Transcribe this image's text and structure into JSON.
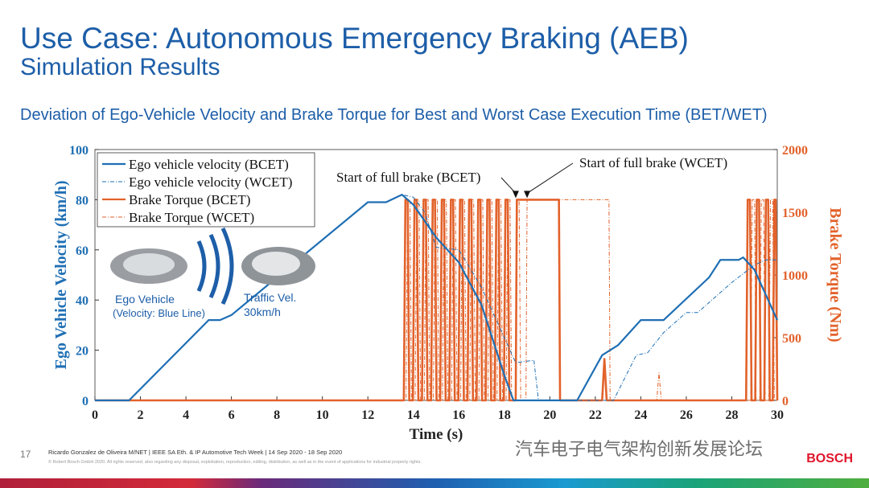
{
  "header": {
    "title": "Use Case: Autonomous Emergency Braking (AEB)",
    "subtitle": "Simulation Results",
    "heading": "Deviation of Ego-Vehicle Velocity and Brake Torque for Best and Worst Case Execution Time (BET/WET)"
  },
  "illustration": {
    "ego_label": "Ego Vehicle",
    "ego_note": "(Velocity: Blue Line)",
    "traffic_label": "Traffic Vel.",
    "traffic_speed": "30km/h"
  },
  "chart_data": {
    "type": "line",
    "xlabel": "Time (s)",
    "ylabel": "Ego Vehicle Velocity (km/h)",
    "y2label": "Brake Torque (Nm)",
    "xlim": [
      0,
      30
    ],
    "xticks": [
      0,
      2,
      4,
      6,
      8,
      10,
      12,
      14,
      16,
      18,
      20,
      22,
      24,
      26,
      28,
      30
    ],
    "ylim": [
      0,
      100
    ],
    "yticks": [
      0,
      20,
      40,
      60,
      80,
      100
    ],
    "y2lim": [
      0,
      2000
    ],
    "y2ticks": [
      0,
      500,
      1000,
      1500,
      2000
    ],
    "legend": "upper left",
    "annotations": [
      {
        "text": "Start of full brake (BCET)",
        "x": 18.5,
        "y": 1600
      },
      {
        "text": "Start of full brake (WCET)",
        "x": 19.0,
        "y": 1600
      }
    ],
    "series": [
      {
        "name": "Ego vehicle velocity (BCET)",
        "color": "#1f6fb4",
        "style": "solid",
        "axis": "y",
        "x": [
          0,
          1.5,
          5,
          5.5,
          6,
          12,
          12.8,
          13.5,
          14,
          15,
          16,
          17,
          18,
          18.4,
          21.2,
          22.3,
          23,
          24,
          25,
          27,
          27.5,
          28.3,
          28.5,
          29,
          29.5,
          30
        ],
        "values": [
          0,
          0,
          32,
          32,
          34,
          79,
          79,
          82,
          78,
          65,
          55,
          38,
          10,
          0,
          0,
          18,
          22,
          32,
          32,
          49,
          56,
          56,
          57,
          52,
          42,
          32
        ]
      },
      {
        "name": "Ego vehicle velocity (WCET)",
        "color": "#1f6fb4",
        "style": "dashed",
        "axis": "y",
        "x": [
          0,
          1.5,
          5,
          5.5,
          6,
          12,
          12.8,
          13.5,
          14,
          14.5,
          15,
          16,
          17,
          18,
          18.5,
          19.3,
          19.5,
          22.8,
          23.8,
          24.3,
          25,
          26,
          26.5,
          28,
          29,
          29.5,
          30
        ],
        "values": [
          0,
          0,
          32,
          32,
          34,
          79,
          79,
          82,
          81,
          75,
          61,
          60,
          45,
          25,
          15,
          16,
          0,
          0,
          18,
          19,
          27,
          35,
          35,
          47,
          54,
          56,
          56
        ]
      },
      {
        "name": "Brake Torque (BCET)",
        "color": "#e2622b",
        "style": "solid",
        "axis": "y2",
        "x": [
          0,
          13.58,
          13.65,
          13.75,
          13.82,
          13.98,
          14.05,
          14.15,
          14.22,
          14.38,
          14.45,
          14.55,
          14.62,
          14.78,
          14.85,
          14.95,
          15.02,
          15.18,
          15.25,
          15.35,
          15.42,
          15.58,
          15.65,
          15.75,
          15.82,
          15.98,
          16.05,
          16.15,
          16.22,
          16.38,
          16.45,
          16.55,
          16.62,
          16.78,
          16.85,
          16.95,
          17.02,
          17.18,
          17.25,
          17.35,
          17.42,
          17.58,
          17.65,
          17.75,
          17.82,
          17.98,
          18.05,
          18.15,
          18.22,
          18.5,
          18.55,
          20.4,
          20.45,
          22.3,
          22.4,
          22.5,
          28.63,
          28.7,
          28.8,
          28.87,
          29.03,
          29.1,
          29.2,
          29.27,
          29.43,
          29.5,
          29.6,
          29.67,
          29.8,
          29.87,
          29.93,
          30
        ],
        "values": [
          0,
          0,
          1600,
          1600,
          0,
          0,
          1600,
          1600,
          0,
          0,
          1600,
          1600,
          0,
          0,
          1600,
          1600,
          0,
          0,
          1600,
          1600,
          0,
          0,
          1600,
          1600,
          0,
          0,
          1600,
          1600,
          0,
          0,
          1600,
          1600,
          0,
          0,
          1600,
          1600,
          0,
          0,
          1600,
          1600,
          0,
          0,
          1600,
          1600,
          0,
          0,
          1600,
          1600,
          0,
          0,
          1600,
          1600,
          0,
          0,
          330,
          0,
          0,
          1600,
          1600,
          0,
          0,
          1600,
          1600,
          0,
          0,
          1600,
          1600,
          0,
          0,
          1600,
          1600,
          0
        ]
      },
      {
        "name": "Brake Torque (WCET)",
        "color": "#e2622b",
        "style": "dashed",
        "axis": "y2",
        "x": [
          0,
          13.68,
          13.75,
          13.85,
          13.92,
          14.08,
          14.15,
          14.25,
          14.32,
          14.48,
          14.55,
          14.65,
          14.72,
          14.88,
          14.95,
          15.05,
          15.12,
          15.28,
          15.35,
          15.45,
          15.52,
          15.68,
          15.75,
          15.85,
          15.92,
          16.08,
          16.15,
          16.25,
          16.32,
          16.48,
          16.55,
          16.65,
          16.72,
          16.88,
          16.95,
          17.05,
          17.12,
          17.28,
          17.35,
          17.45,
          17.52,
          17.68,
          17.75,
          17.85,
          17.92,
          18.08,
          18.15,
          18.25,
          18.32,
          18.48,
          18.55,
          18.65,
          18.72,
          18.95,
          19.0,
          22.6,
          22.65,
          24.7,
          24.8,
          24.9,
          28.83,
          28.9,
          29.0,
          29.07,
          29.23,
          29.3,
          29.4,
          29.47,
          29.63,
          29.7,
          29.8,
          29.87,
          30
        ],
        "values": [
          0,
          0,
          1600,
          1600,
          0,
          0,
          1600,
          1600,
          0,
          0,
          1600,
          1600,
          0,
          0,
          1600,
          1600,
          0,
          0,
          1600,
          1600,
          0,
          0,
          1600,
          1600,
          0,
          0,
          1600,
          1600,
          0,
          0,
          1600,
          1600,
          0,
          0,
          1600,
          1600,
          0,
          0,
          1600,
          1600,
          0,
          0,
          1600,
          1600,
          0,
          0,
          1600,
          1600,
          0,
          0,
          1600,
          1600,
          0,
          0,
          1600,
          1600,
          0,
          0,
          220,
          0,
          0,
          1600,
          1600,
          0,
          0,
          1600,
          1600,
          0,
          0,
          1600,
          1600,
          0,
          0
        ]
      }
    ]
  },
  "footer": {
    "page": "17",
    "author": "Ricardo Gonzalez de Oliveira M/NET | IEEE SA Eth. & IP Automotive Tech Week | 14 Sep 2020 - 18 Sep 2020",
    "copyright": "© Robert Bosch GmbH 2020. All rights reserved, also regarding any disposal, exploitation, reproduction, editing, distribution, as well as in the event of applications for industrial property rights.",
    "watermark": "汽车电子电气架构创新发展论坛",
    "brand": "BOSCH"
  }
}
